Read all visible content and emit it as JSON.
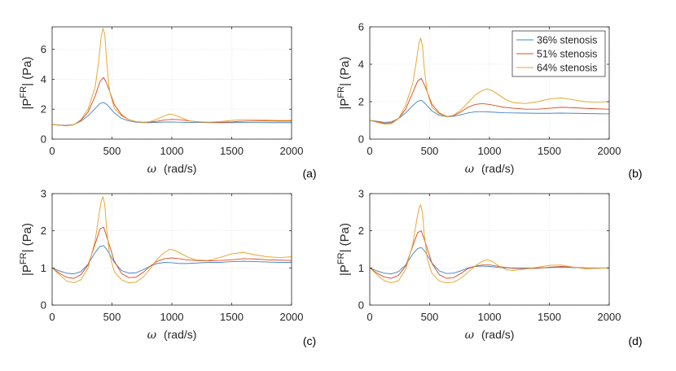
{
  "figure": {
    "panel_labels": [
      "(a)",
      "(b)",
      "(c)",
      "(d)"
    ]
  },
  "chart_data": [
    {
      "type": "line",
      "panel": "(a)",
      "xlabel": "ω  (rad/s)",
      "ylabel": "|P^FR| (Pa)",
      "xlim": [
        0,
        2000
      ],
      "ylim": [
        0,
        7.5
      ],
      "xticks": [
        0,
        500,
        1000,
        1500,
        2000
      ],
      "yticks": [
        0,
        2,
        4,
        6
      ],
      "grid": true,
      "series": [
        {
          "name": "36% stenosis",
          "color": "#4a86c8",
          "x": [
            0,
            60,
            120,
            180,
            240,
            300,
            360,
            400,
            430,
            460,
            520,
            580,
            640,
            700,
            760,
            820,
            880,
            940,
            1000,
            1060,
            1120,
            1200,
            1300,
            1400,
            1500,
            1600,
            1700,
            1800,
            1900,
            2000
          ],
          "y": [
            0.98,
            0.94,
            0.92,
            0.97,
            1.2,
            1.55,
            2.05,
            2.38,
            2.45,
            2.3,
            1.75,
            1.38,
            1.22,
            1.13,
            1.1,
            1.1,
            1.12,
            1.14,
            1.14,
            1.13,
            1.12,
            1.11,
            1.1,
            1.1,
            1.1,
            1.11,
            1.11,
            1.1,
            1.1,
            1.1
          ]
        },
        {
          "name": "51% stenosis",
          "color": "#d4502a",
          "x": [
            0,
            60,
            120,
            180,
            240,
            300,
            360,
            400,
            430,
            460,
            520,
            580,
            640,
            700,
            760,
            820,
            880,
            940,
            1000,
            1060,
            1120,
            1200,
            1300,
            1400,
            1500,
            1600,
            1700,
            1800,
            1900,
            2000
          ],
          "y": [
            0.98,
            0.93,
            0.9,
            0.96,
            1.25,
            1.8,
            2.9,
            3.85,
            4.12,
            3.65,
            2.3,
            1.62,
            1.3,
            1.17,
            1.13,
            1.14,
            1.2,
            1.28,
            1.32,
            1.3,
            1.24,
            1.17,
            1.13,
            1.12,
            1.15,
            1.2,
            1.22,
            1.21,
            1.2,
            1.2
          ]
        },
        {
          "name": "64% stenosis",
          "color": "#e8a52c",
          "x": [
            0,
            60,
            120,
            180,
            240,
            300,
            360,
            390,
            410,
            425,
            440,
            455,
            480,
            520,
            580,
            640,
            700,
            760,
            820,
            880,
            940,
            980,
            1020,
            1080,
            1140,
            1200,
            1300,
            1400,
            1500,
            1600,
            1700,
            1800,
            1900,
            2000
          ],
          "y": [
            0.98,
            0.92,
            0.88,
            0.95,
            1.3,
            2.0,
            3.5,
            5.3,
            6.9,
            7.4,
            7.0,
            5.2,
            3.2,
            2.05,
            1.55,
            1.3,
            1.17,
            1.12,
            1.17,
            1.35,
            1.55,
            1.68,
            1.62,
            1.42,
            1.24,
            1.15,
            1.13,
            1.17,
            1.25,
            1.3,
            1.3,
            1.27,
            1.25,
            1.25
          ]
        }
      ]
    },
    {
      "type": "line",
      "panel": "(b)",
      "xlabel": "ω  (rad/s)",
      "ylabel": "|P^FR| (Pa)",
      "xlim": [
        0,
        2000
      ],
      "ylim": [
        0,
        6
      ],
      "xticks": [
        0,
        500,
        1000,
        1500,
        2000
      ],
      "yticks": [
        0,
        2,
        4,
        6
      ],
      "grid": true,
      "legend": {
        "position": "top-right",
        "entries": [
          "36% stenosis",
          "51% stenosis",
          "64% stenosis"
        ]
      },
      "series": [
        {
          "name": "36% stenosis",
          "color": "#4a86c8",
          "x": [
            0,
            60,
            120,
            180,
            240,
            300,
            360,
            400,
            430,
            460,
            520,
            580,
            640,
            700,
            760,
            820,
            880,
            940,
            1000,
            1060,
            1120,
            1200,
            1300,
            1400,
            1500,
            1600,
            1700,
            1800,
            1900,
            2000
          ],
          "y": [
            1.0,
            0.95,
            0.9,
            0.92,
            1.1,
            1.4,
            1.8,
            2.02,
            2.08,
            1.92,
            1.5,
            1.27,
            1.2,
            1.22,
            1.3,
            1.4,
            1.46,
            1.47,
            1.45,
            1.43,
            1.41,
            1.4,
            1.39,
            1.38,
            1.38,
            1.39,
            1.38,
            1.37,
            1.36,
            1.35
          ]
        },
        {
          "name": "51% stenosis",
          "color": "#d4502a",
          "x": [
            0,
            60,
            120,
            180,
            240,
            300,
            360,
            400,
            430,
            460,
            520,
            580,
            640,
            700,
            760,
            820,
            880,
            940,
            1000,
            1060,
            1120,
            1200,
            1300,
            1400,
            1500,
            1600,
            1700,
            1800,
            1900,
            2000
          ],
          "y": [
            1.0,
            0.92,
            0.85,
            0.87,
            1.1,
            1.6,
            2.5,
            3.1,
            3.25,
            2.85,
            1.85,
            1.4,
            1.22,
            1.25,
            1.45,
            1.7,
            1.85,
            1.9,
            1.85,
            1.78,
            1.7,
            1.65,
            1.6,
            1.6,
            1.65,
            1.7,
            1.68,
            1.64,
            1.62,
            1.6
          ]
        },
        {
          "name": "64% stenosis",
          "color": "#e8a52c",
          "x": [
            0,
            60,
            120,
            180,
            240,
            300,
            360,
            390,
            410,
            425,
            440,
            455,
            480,
            520,
            580,
            640,
            700,
            760,
            820,
            880,
            940,
            980,
            1020,
            1080,
            1140,
            1200,
            1300,
            1400,
            1500,
            1600,
            1700,
            1800,
            1900,
            2000
          ],
          "y": [
            1.0,
            0.9,
            0.8,
            0.82,
            1.1,
            1.8,
            3.0,
            4.2,
            5.1,
            5.4,
            5.0,
            3.8,
            2.5,
            1.7,
            1.35,
            1.2,
            1.28,
            1.55,
            1.95,
            2.35,
            2.6,
            2.68,
            2.6,
            2.35,
            2.1,
            1.95,
            1.9,
            2.0,
            2.15,
            2.2,
            2.1,
            2.0,
            1.98,
            2.0
          ]
        }
      ]
    },
    {
      "type": "line",
      "panel": "(c)",
      "xlabel": "ω  (rad/s)",
      "ylabel": "|P^FR| (Pa)",
      "xlim": [
        0,
        2000
      ],
      "ylim": [
        0,
        3
      ],
      "xticks": [
        0,
        500,
        1000,
        1500,
        2000
      ],
      "yticks": [
        0,
        1,
        2,
        3
      ],
      "grid": true,
      "series": [
        {
          "name": "36% stenosis",
          "color": "#4a86c8",
          "x": [
            0,
            60,
            120,
            180,
            240,
            300,
            360,
            400,
            430,
            460,
            520,
            580,
            640,
            700,
            760,
            820,
            880,
            940,
            1000,
            1060,
            1120,
            1200,
            1300,
            1400,
            1500,
            1600,
            1700,
            1800,
            1900,
            2000
          ],
          "y": [
            1.0,
            0.92,
            0.86,
            0.84,
            0.9,
            1.1,
            1.42,
            1.58,
            1.6,
            1.48,
            1.15,
            0.93,
            0.86,
            0.87,
            0.95,
            1.05,
            1.12,
            1.15,
            1.14,
            1.12,
            1.12,
            1.13,
            1.15,
            1.15,
            1.17,
            1.18,
            1.17,
            1.16,
            1.15,
            1.15
          ]
        },
        {
          "name": "51% stenosis",
          "color": "#d4502a",
          "x": [
            0,
            60,
            120,
            180,
            240,
            300,
            360,
            400,
            430,
            460,
            520,
            580,
            640,
            700,
            760,
            820,
            880,
            940,
            1000,
            1060,
            1120,
            1200,
            1300,
            1400,
            1500,
            1600,
            1700,
            1800,
            1900,
            2000
          ],
          "y": [
            1.0,
            0.86,
            0.75,
            0.72,
            0.82,
            1.08,
            1.65,
            2.05,
            2.1,
            1.8,
            1.18,
            0.85,
            0.74,
            0.75,
            0.88,
            1.05,
            1.18,
            1.25,
            1.27,
            1.25,
            1.22,
            1.2,
            1.19,
            1.2,
            1.22,
            1.25,
            1.24,
            1.22,
            1.21,
            1.2
          ]
        },
        {
          "name": "64% stenosis",
          "color": "#e8a52c",
          "x": [
            0,
            60,
            120,
            180,
            240,
            300,
            360,
            390,
            410,
            425,
            440,
            455,
            480,
            520,
            580,
            640,
            700,
            760,
            820,
            880,
            940,
            980,
            1020,
            1080,
            1140,
            1200,
            1300,
            1400,
            1500,
            1600,
            1700,
            1800,
            1900,
            2000
          ],
          "y": [
            1.0,
            0.82,
            0.65,
            0.6,
            0.68,
            1.0,
            1.75,
            2.4,
            2.8,
            2.92,
            2.7,
            2.05,
            1.35,
            0.9,
            0.68,
            0.6,
            0.62,
            0.75,
            0.98,
            1.25,
            1.42,
            1.5,
            1.48,
            1.38,
            1.28,
            1.22,
            1.2,
            1.28,
            1.38,
            1.42,
            1.35,
            1.3,
            1.28,
            1.3
          ]
        }
      ]
    },
    {
      "type": "line",
      "panel": "(d)",
      "xlabel": "ω  (rad/s)",
      "ylabel": "|P^FR| (Pa)",
      "xlim": [
        0,
        2000
      ],
      "ylim": [
        0,
        3
      ],
      "xticks": [
        0,
        500,
        1000,
        1500,
        2000
      ],
      "yticks": [
        0,
        1,
        2,
        3
      ],
      "grid": true,
      "series": [
        {
          "name": "36% stenosis",
          "color": "#4a86c8",
          "x": [
            0,
            60,
            120,
            180,
            240,
            300,
            360,
            400,
            430,
            460,
            520,
            580,
            640,
            700,
            760,
            820,
            880,
            940,
            1000,
            1060,
            1120,
            1200,
            1300,
            1400,
            1500,
            1600,
            1700,
            1800,
            1900,
            2000
          ],
          "y": [
            1.0,
            0.92,
            0.86,
            0.84,
            0.9,
            1.08,
            1.38,
            1.52,
            1.55,
            1.45,
            1.13,
            0.92,
            0.85,
            0.86,
            0.92,
            1.0,
            1.04,
            1.05,
            1.04,
            1.02,
            1.0,
            1.0,
            1.0,
            1.0,
            1.01,
            1.02,
            1.01,
            1.0,
            1.0,
            1.0
          ]
        },
        {
          "name": "51% stenosis",
          "color": "#d4502a",
          "x": [
            0,
            60,
            120,
            180,
            240,
            300,
            360,
            400,
            430,
            460,
            520,
            580,
            640,
            700,
            760,
            820,
            880,
            940,
            1000,
            1060,
            1120,
            1200,
            1300,
            1400,
            1500,
            1600,
            1700,
            1800,
            1900,
            2000
          ],
          "y": [
            1.0,
            0.86,
            0.76,
            0.72,
            0.8,
            1.05,
            1.6,
            1.95,
            2.0,
            1.72,
            1.12,
            0.82,
            0.72,
            0.74,
            0.85,
            0.98,
            1.05,
            1.08,
            1.08,
            1.05,
            1.02,
            0.99,
            0.98,
            0.99,
            1.02,
            1.04,
            1.02,
            1.0,
            0.99,
            1.0
          ]
        },
        {
          "name": "64% stenosis",
          "color": "#e8a52c",
          "x": [
            0,
            60,
            120,
            180,
            240,
            300,
            360,
            390,
            410,
            425,
            440,
            455,
            480,
            520,
            580,
            640,
            700,
            760,
            820,
            880,
            940,
            980,
            1020,
            1080,
            1140,
            1200,
            1300,
            1400,
            1500,
            1600,
            1700,
            1800,
            1900,
            2000
          ],
          "y": [
            1.0,
            0.82,
            0.66,
            0.6,
            0.66,
            0.96,
            1.65,
            2.25,
            2.6,
            2.7,
            2.5,
            1.9,
            1.25,
            0.85,
            0.65,
            0.6,
            0.62,
            0.72,
            0.88,
            1.05,
            1.18,
            1.22,
            1.18,
            1.05,
            0.95,
            0.93,
            0.97,
            1.02,
            1.07,
            1.08,
            1.02,
            0.98,
            0.99,
            1.0
          ]
        }
      ]
    }
  ]
}
